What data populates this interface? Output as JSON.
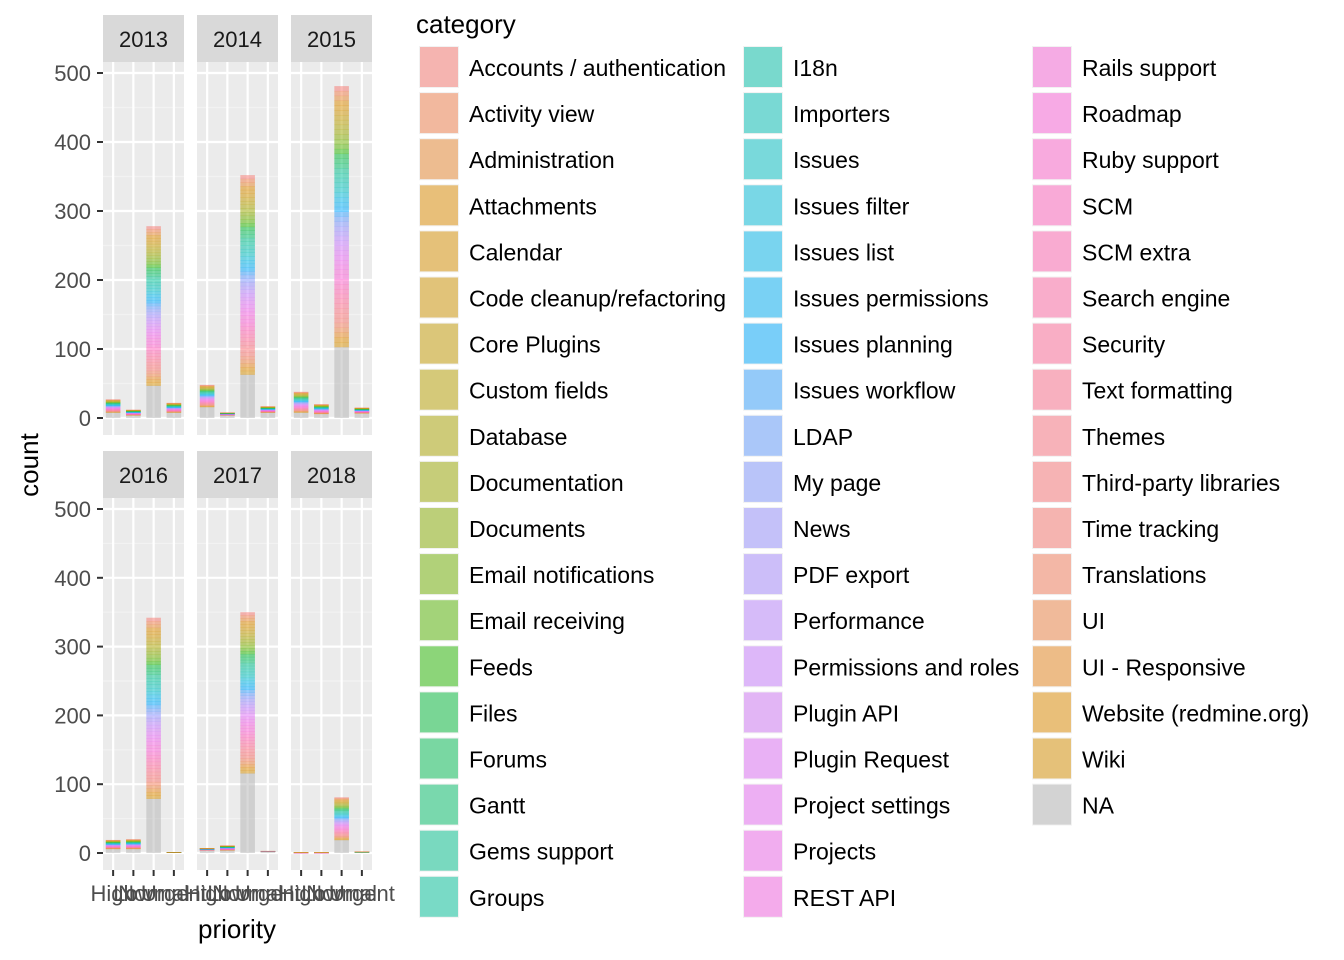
{
  "chart_data": {
    "type": "bar",
    "stacked": true,
    "facets": [
      "2013",
      "2014",
      "2015",
      "2016",
      "2017",
      "2018"
    ],
    "categories": [
      "High",
      "Low",
      "Normal",
      "Urgent"
    ],
    "xlabel": "priority",
    "ylabel": "count",
    "yticks": [
      0,
      100,
      200,
      300,
      400,
      500
    ],
    "ylim": [
      0,
      500
    ],
    "legend_title": "category",
    "legend_position": "right",
    "na_color": "#b3b3b3",
    "bar_opacity": 0.5,
    "legend_items": [
      {
        "name": "Accounts / authentication",
        "color": "#f8766d"
      },
      {
        "name": "Activity view",
        "color": "#f17e4a"
      },
      {
        "name": "Administration",
        "color": "#e8852d"
      },
      {
        "name": "Attachments",
        "color": "#de8c00"
      },
      {
        "name": "Calendar",
        "color": "#d89000"
      },
      {
        "name": "Code cleanup/refactoring",
        "color": "#cf9400"
      },
      {
        "name": "Core Plugins",
        "color": "#c49a00"
      },
      {
        "name": "Custom fields",
        "color": "#b79f00"
      },
      {
        "name": "Database",
        "color": "#a9a400"
      },
      {
        "name": "Documentation",
        "color": "#99a800"
      },
      {
        "name": "Documents",
        "color": "#86ac00"
      },
      {
        "name": "Email notifications",
        "color": "#70b000"
      },
      {
        "name": "Email receiving",
        "color": "#53b400"
      },
      {
        "name": "Feeds",
        "color": "#25b700"
      },
      {
        "name": "Files",
        "color": "#00ba38"
      },
      {
        "name": "Forums",
        "color": "#00bc51"
      },
      {
        "name": "Gantt",
        "color": "#00be67"
      },
      {
        "name": "Gems support",
        "color": "#00c08b"
      },
      {
        "name": "Groups",
        "color": "#00c19a"
      },
      {
        "name": "I18n",
        "color": "#00c0a8"
      },
      {
        "name": "Importers",
        "color": "#00bfb6"
      },
      {
        "name": "Issues",
        "color": "#00bfc4"
      },
      {
        "name": "Issues filter",
        "color": "#00bbda"
      },
      {
        "name": "Issues list",
        "color": "#00b6eb"
      },
      {
        "name": "Issues permissions",
        "color": "#00b0f6"
      },
      {
        "name": "Issues planning",
        "color": "#00a9ff"
      },
      {
        "name": "Issues workflow",
        "color": "#35a2ff"
      },
      {
        "name": "LDAP",
        "color": "#619cff"
      },
      {
        "name": "My page",
        "color": "#7f96ff"
      },
      {
        "name": "News",
        "color": "#9590ff"
      },
      {
        "name": "PDF export",
        "color": "#a58aff"
      },
      {
        "name": "Performance",
        "color": "#b983ff"
      },
      {
        "name": "Permissions and roles",
        "color": "#c77cff"
      },
      {
        "name": "Plugin API",
        "color": "#d277f8"
      },
      {
        "name": "Plugin Request",
        "color": "#df70f8"
      },
      {
        "name": "Project settings",
        "color": "#e76bf3"
      },
      {
        "name": "Projects",
        "color": "#ef67eb"
      },
      {
        "name": "REST API",
        "color": "#f564e3"
      },
      {
        "name": "Rails support",
        "color": "#f863d6"
      },
      {
        "name": "Roadmap",
        "color": "#fb61d7"
      },
      {
        "name": "Ruby support",
        "color": "#fd61c9"
      },
      {
        "name": "SCM",
        "color": "#ff62bc"
      },
      {
        "name": "SCM extra",
        "color": "#ff64b0"
      },
      {
        "name": "Search engine",
        "color": "#ff67a4"
      },
      {
        "name": "Security",
        "color": "#ff6a98"
      },
      {
        "name": "Text formatting",
        "color": "#fe6d8c"
      },
      {
        "name": "Themes",
        "color": "#fc717f"
      },
      {
        "name": "Third-party libraries",
        "color": "#fa7476"
      },
      {
        "name": "Time tracking",
        "color": "#f8766d"
      },
      {
        "name": "Translations",
        "color": "#f37b59"
      },
      {
        "name": "UI",
        "color": "#ed8141"
      },
      {
        "name": "UI - Responsive",
        "color": "#e7861b"
      },
      {
        "name": "Website (redmine.org)",
        "color": "#e08b00"
      },
      {
        "name": "Wiki",
        "color": "#d89000"
      },
      {
        "name": "NA",
        "color": "#b3b3b3"
      }
    ],
    "panels": [
      {
        "facet": "2013",
        "totals": [
          27,
          12,
          278,
          22
        ],
        "na": [
          8,
          4,
          47,
          8
        ]
      },
      {
        "facet": "2014",
        "totals": [
          48,
          8,
          352,
          17
        ],
        "na": [
          16,
          4,
          63,
          8
        ]
      },
      {
        "facet": "2015",
        "totals": [
          38,
          20,
          481,
          15
        ],
        "na": [
          8,
          6,
          103,
          7
        ]
      },
      {
        "facet": "2016",
        "totals": [
          19,
          20,
          342,
          1
        ],
        "na": [
          6,
          6,
          79,
          1
        ]
      },
      {
        "facet": "2017",
        "totals": [
          7,
          11,
          350,
          3
        ],
        "na": [
          4,
          4,
          116,
          2
        ]
      },
      {
        "facet": "2018",
        "totals": [
          1,
          1,
          81,
          2
        ],
        "na": [
          0,
          0,
          19,
          1
        ]
      }
    ]
  }
}
